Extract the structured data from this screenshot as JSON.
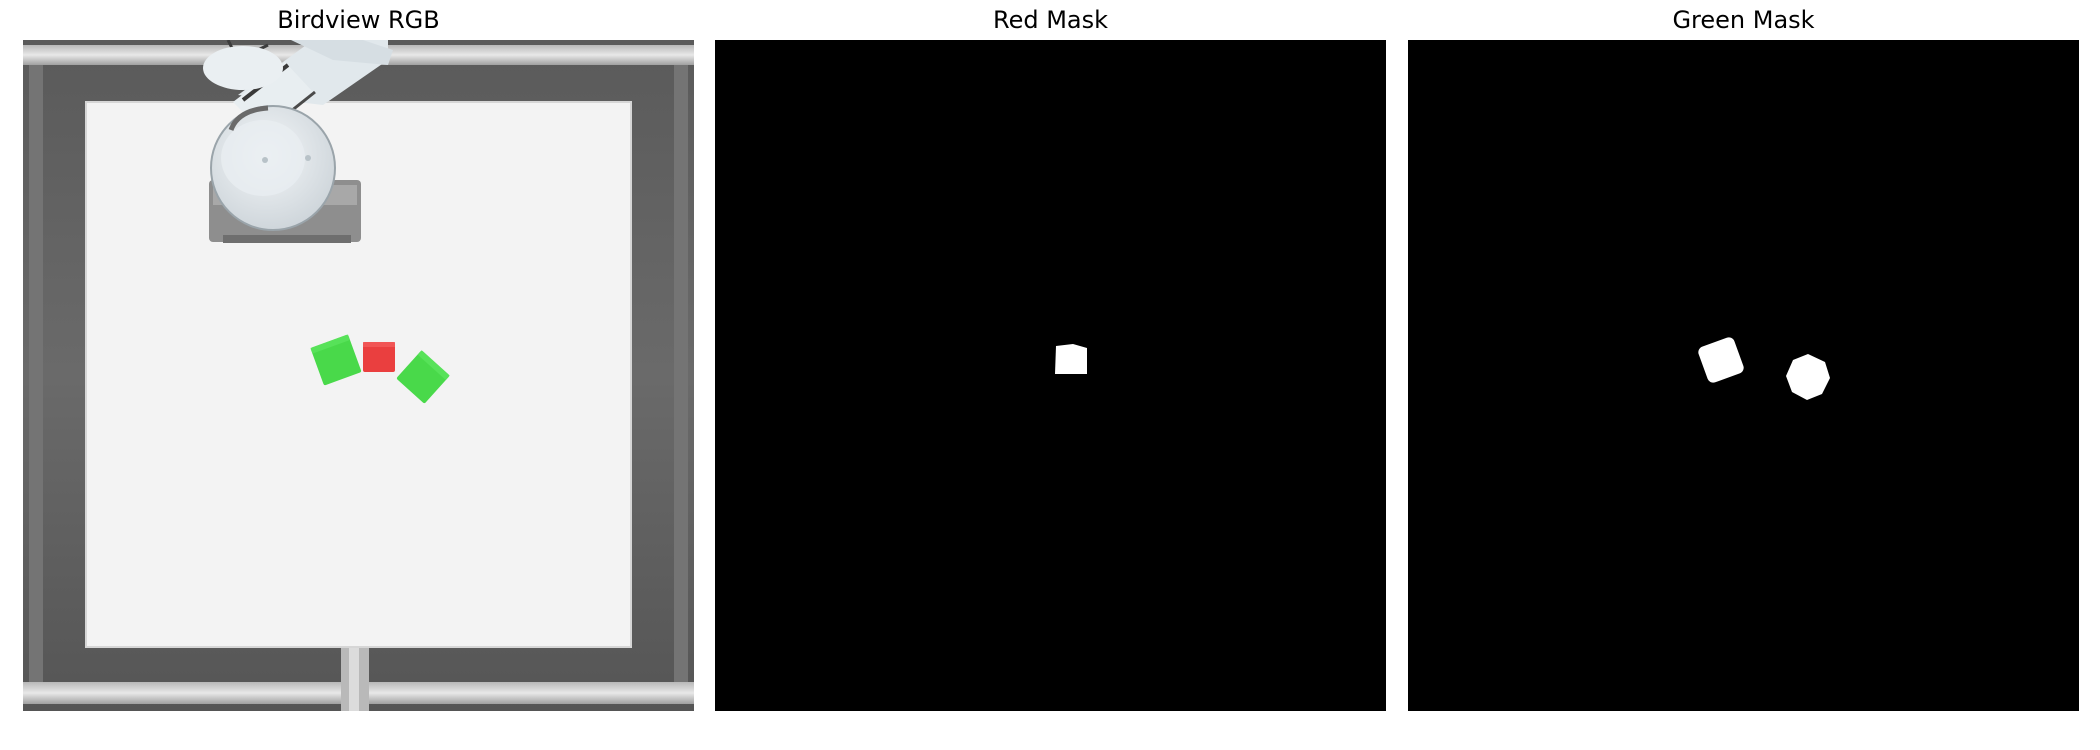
{
  "panels": [
    {
      "title": "Birdview RGB"
    },
    {
      "title": "Red Mask"
    },
    {
      "title": "Green Mask"
    }
  ],
  "colors": {
    "table": "#f3f3f3",
    "frame": "#5f5f5f",
    "red_cube": "#ea3f3f",
    "green_cube": "#49d94a",
    "mask_background": "#000000",
    "mask_foreground": "#ffffff"
  }
}
